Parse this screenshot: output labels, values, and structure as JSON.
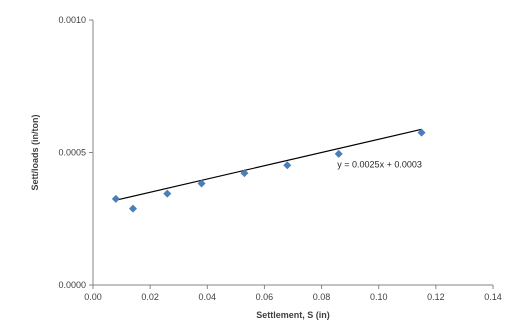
{
  "chart_data": {
    "type": "scatter",
    "xlabel": "Settlement, S (in)",
    "ylabel": "Sett/loads (in/ton)",
    "xlim": [
      0,
      0.14
    ],
    "ylim": [
      0,
      0.001
    ],
    "x_ticks": [
      "0.00",
      "0.02",
      "0.04",
      "0.06",
      "0.08",
      "0.10",
      "0.12",
      "0.14"
    ],
    "y_ticks": [
      "0.0000",
      "0.0005",
      "0.0010"
    ],
    "grid": false,
    "legend": "none",
    "series": [
      {
        "color": "#4a7ebb",
        "marker": "diamond",
        "x": [
          0.008,
          0.014,
          0.026,
          0.038,
          0.053,
          0.068,
          0.086,
          0.115
        ],
        "y": [
          0.000325,
          0.000288,
          0.000345,
          0.000383,
          0.000422,
          0.000452,
          0.000495,
          0.000575
        ]
      }
    ],
    "trendline": {
      "color": "#000000",
      "slope": 0.0025,
      "intercept": 0.0003,
      "x_range": [
        0.008,
        0.115
      ],
      "label": "y = 0.0025x + 0.0003"
    }
  }
}
